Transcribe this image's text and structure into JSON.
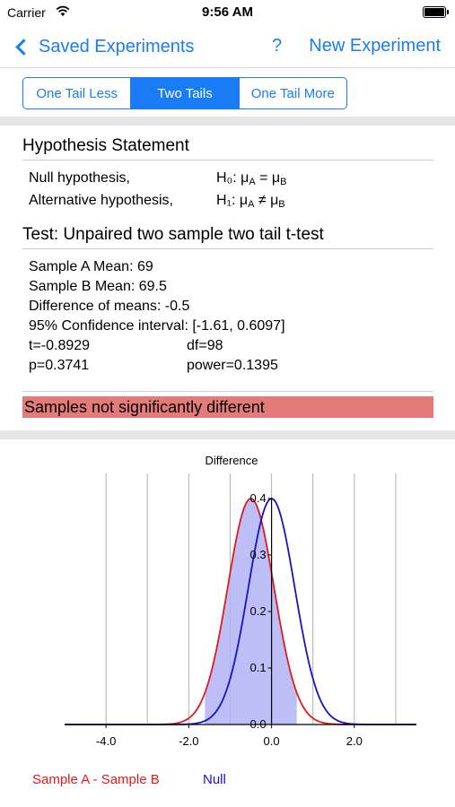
{
  "status_bar": {
    "carrier": "Carrier",
    "time": "9:56 AM"
  },
  "nav": {
    "back_label": "Saved Experiments",
    "help_label": "?",
    "new_label": "New Experiment"
  },
  "segments": [
    {
      "label": "One Tail Less",
      "selected": false
    },
    {
      "label": "Two Tails",
      "selected": true
    },
    {
      "label": "One Tail More",
      "selected": false
    }
  ],
  "hypothesis": {
    "title": "Hypothesis Statement",
    "null_label": "Null hypothesis,",
    "null_formula": "H₀: μ",
    "null_formula_mid": " = μ",
    "alt_label": "Alternative hypothesis,",
    "alt_formula": "H₁: μ",
    "alt_formula_mid": " ≠ μ",
    "sub_a": "A",
    "sub_b": "B"
  },
  "test": {
    "title": "Test: Unpaired two sample two tail t-test",
    "lines": [
      "Sample A Mean: 69",
      "Sample B Mean: 69.5",
      "Difference of means: -0.5",
      "95% Confidence interval: [-1.61, 0.6097]"
    ],
    "t": "t=-0.8929",
    "df": "df=98",
    "p": "p=0.3741",
    "power": "power=0.1395"
  },
  "result": "Samples not significantly different",
  "colors": {
    "accent": "#1a7cf5",
    "banner": "#e47b7b",
    "sample_curve": "#e01b1b",
    "null_curve": "#1414c8",
    "shade": "#b3b3f5"
  },
  "chart_data": {
    "type": "line",
    "title": "Difference",
    "xlim": [
      -5.0,
      3.5
    ],
    "ylim": [
      0,
      0.4
    ],
    "x_ticks": [
      -4.0,
      -2.0,
      0.0,
      2.0
    ],
    "x_tick_labels": [
      "-4.0",
      "-2.0",
      "0.0",
      "2.0"
    ],
    "y_ticks": [
      0.0,
      0.1,
      0.2,
      0.3,
      0.4
    ],
    "y_tick_labels": [
      "0.0",
      "0.1",
      "0.2",
      "0.3",
      "0.4"
    ],
    "grid_x": [
      -4.0,
      -3.0,
      -2.0,
      -1.0,
      0.0,
      1.0,
      2.0,
      3.0
    ],
    "series": [
      {
        "name": "Sample A - Sample B",
        "color": "#e01b1b",
        "mean": -0.5,
        "sd": 0.56
      },
      {
        "name": "Null",
        "color": "#1414c8",
        "mean": 0.0,
        "sd": 0.56
      }
    ],
    "shaded_interval": [
      -1.61,
      0.6097
    ],
    "legend_position": "bottom"
  }
}
